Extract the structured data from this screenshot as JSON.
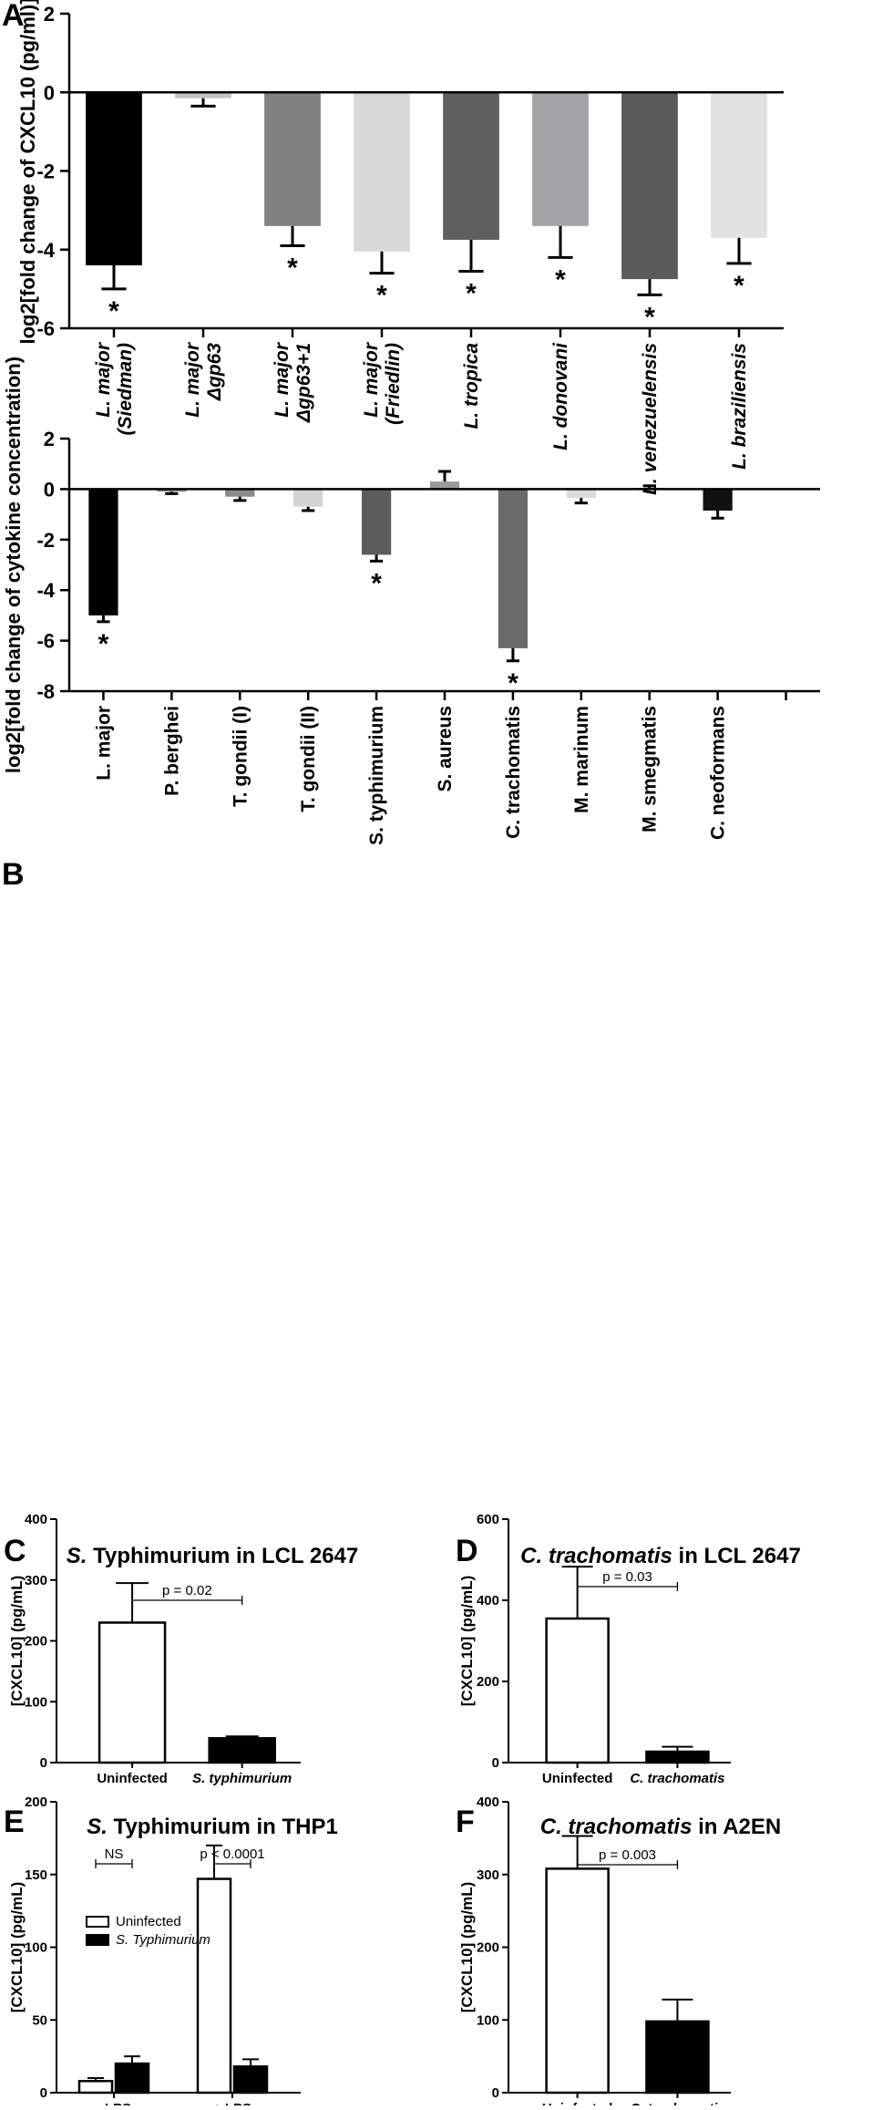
{
  "panels": {
    "A": "A",
    "B": "B",
    "C": "C",
    "D": "D",
    "E": "E",
    "F": "F"
  },
  "chart_data": [
    {
      "id": "A",
      "type": "bar",
      "title": "",
      "ylabel": "log2[fold change of CXCL10 (pg/ml)]",
      "ylim": [
        -6,
        2
      ],
      "yticks": [
        2,
        0,
        -2,
        -4,
        -6
      ],
      "categories": [
        [
          "L. major",
          "(Siedman)"
        ],
        [
          "L. major",
          "Δgp63"
        ],
        [
          "L. major",
          "Δgp63+1"
        ],
        [
          "L. major",
          "(Friedlin)"
        ],
        [
          "L. tropica"
        ],
        [
          "L. donovani"
        ],
        [
          "L. venezuelensis"
        ],
        [
          "L. braziliensis"
        ]
      ],
      "values": [
        -4.4,
        -0.15,
        -3.4,
        -4.05,
        -3.75,
        -3.4,
        -4.75,
        -3.7
      ],
      "errors": [
        0.6,
        0.2,
        0.5,
        0.55,
        0.8,
        0.8,
        0.4,
        0.65
      ],
      "colors": [
        "#000000",
        "#c4c4c4",
        "#828282",
        "#d8d8d8",
        "#5f5f5f",
        "#a4a4a6",
        "#5a5a5a",
        "#e2e2e2"
      ],
      "significant": [
        true,
        false,
        true,
        true,
        true,
        true,
        true,
        true
      ],
      "star": "*"
    },
    {
      "id": "B",
      "type": "bar",
      "title": "",
      "ylabel": "log2[fold change of cytokine concentration)",
      "ylim": [
        -8,
        2
      ],
      "yticks": [
        2,
        0,
        -2,
        -4,
        -6,
        -8
      ],
      "categories": [
        "L. major",
        "P. berghei",
        "T. gondii (I)",
        "T. gondii (II)",
        "S. typhimurium",
        "S. aureus",
        "C. trachomatis",
        "M. marinum",
        "M. smegmatis",
        "C. neoformans",
        ""
      ],
      "values": [
        -5.0,
        -0.1,
        -0.3,
        -0.7,
        -2.6,
        0.3,
        -6.3,
        -0.35,
        0.05,
        -0.85,
        0
      ],
      "errors": [
        0.25,
        0.08,
        0.15,
        0.15,
        0.25,
        0.4,
        0.5,
        0.2,
        0.08,
        0.3,
        0
      ],
      "colors": [
        "#000000",
        "#8c8c8c",
        "#8a8a8a",
        "#d4d4d4",
        "#5c5c5c",
        "#9a9a9a",
        "#6a6a6a",
        "#dadada",
        "#7a7a7a",
        "#111111",
        "#ffffff"
      ],
      "significant": [
        true,
        false,
        false,
        false,
        true,
        false,
        true,
        false,
        false,
        false,
        false
      ],
      "star": "*"
    },
    {
      "id": "C",
      "type": "bar",
      "title_bold_italic": "S.",
      "title_rest": " Typhimurium in LCL 2647",
      "ylabel": "[CXCL10] (pg/mL)",
      "ylim": [
        0,
        400
      ],
      "yticks": [
        0,
        100,
        200,
        300,
        400
      ],
      "categories": [
        "Uninfected",
        "S. typhimurium"
      ],
      "italic_categories": [
        false,
        true
      ],
      "values": [
        230,
        40
      ],
      "errors": [
        65,
        3
      ],
      "fills": [
        "#ffffff",
        "#000000"
      ],
      "pvalue": "p = 0.02"
    },
    {
      "id": "D",
      "type": "bar",
      "title_bold_italic": "C. trachomatis",
      "title_rest": "  in LCL 2647",
      "ylabel": "[CXCL10] (pg/mL)",
      "ylim": [
        0,
        600
      ],
      "yticks": [
        0,
        200,
        400,
        600
      ],
      "categories": [
        "Uninfected",
        "C. trachomatis"
      ],
      "italic_categories": [
        false,
        true
      ],
      "values": [
        355,
        27
      ],
      "errors": [
        128,
        12
      ],
      "fills": [
        "#ffffff",
        "#000000"
      ],
      "pvalue": "p = 0.03"
    },
    {
      "id": "E",
      "type": "bar",
      "title_bold_italic": "S.",
      "title_rest": " Typhimurium in THP1",
      "ylabel": "[CXCL10] (pg/mL)",
      "ylim": [
        0,
        200
      ],
      "yticks": [
        0,
        50,
        100,
        150,
        200
      ],
      "categories": [
        "- LPS",
        "+ LPS"
      ],
      "series": [
        {
          "name": "Uninfected",
          "fill": "#ffffff",
          "values": [
            8,
            147
          ],
          "errors": [
            2,
            23
          ]
        },
        {
          "name": "S. Typhimurium",
          "fill": "#000000",
          "values": [
            20,
            18
          ],
          "errors": [
            5,
            5
          ]
        }
      ],
      "pvalues": [
        "NS",
        "p < 0.0001"
      ],
      "legend": [
        "Uninfected",
        "S. Typhimurium"
      ]
    },
    {
      "id": "F",
      "type": "bar",
      "title_bold_italic": "C. trachomatis",
      "title_rest": " in A2EN",
      "ylabel": "[CXCL10] (pg/mL)",
      "ylim": [
        0,
        400
      ],
      "yticks": [
        0,
        100,
        200,
        300,
        400
      ],
      "categories": [
        "Uninfected",
        "C. trachomatis"
      ],
      "italic_categories": [
        false,
        true
      ],
      "values": [
        308,
        98
      ],
      "errors": [
        45,
        30
      ],
      "fills": [
        "#ffffff",
        "#000000"
      ],
      "pvalue": "p = 0.003"
    }
  ]
}
